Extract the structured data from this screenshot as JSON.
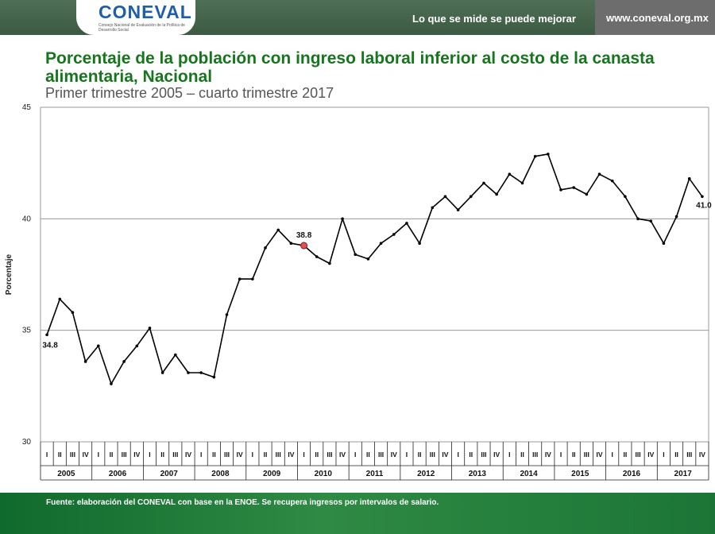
{
  "header": {
    "logo_text": "CONEVAL",
    "logo_subtitle": "Consejo Nacional de Evaluación de la Política de Desarrollo Social",
    "slogan": "Lo que se mide se puede mejorar",
    "url": "www.coneval.org.mx"
  },
  "title": "Porcentaje de la población con ingreso laboral inferior al costo de la canasta alimentaria, Nacional",
  "subtitle": "Primer trimestre 2005 – cuarto trimestre 2017",
  "footer": {
    "source": "Fuente: elaboración del CONEVAL con base en la ENOE. Se recupera ingresos por intervalos de salario."
  },
  "colors": {
    "title_green": "#17751e",
    "line": "#000000",
    "highlight_marker": "#e05050",
    "header_bar": "#46654c",
    "footer_bar": "#1f7a37"
  },
  "chart_data": {
    "type": "line",
    "ylabel": "Porcentaje",
    "ylim": [
      30,
      45
    ],
    "yticks": [
      30,
      35,
      40,
      45
    ],
    "grid": "horizontal",
    "legend": "none",
    "quarter_labels": [
      "I",
      "II",
      "III",
      "IV"
    ],
    "years": [
      "2005",
      "2006",
      "2007",
      "2008",
      "2009",
      "2010",
      "2011",
      "2012",
      "2013",
      "2014",
      "2015",
      "2016",
      "2017"
    ],
    "series": [
      {
        "values": [
          34.8,
          36.4,
          35.8,
          33.6,
          34.3,
          32.6,
          33.6,
          34.3,
          35.1,
          33.1,
          33.9,
          33.1,
          33.1,
          32.9,
          35.7,
          37.3,
          37.3,
          38.7,
          39.5,
          38.9,
          38.8,
          38.3,
          38.0,
          40.0,
          38.4,
          38.2,
          38.9,
          39.3,
          39.8,
          38.9,
          40.5,
          41.0,
          40.4,
          41.0,
          41.6,
          41.1,
          42.0,
          41.6,
          42.8,
          42.9,
          41.3,
          41.4,
          41.1,
          42.0,
          41.7,
          41.0,
          40.0,
          39.9,
          38.9,
          40.1,
          41.8,
          41.0
        ]
      }
    ],
    "annotations": [
      {
        "index": 0,
        "text": "34.8"
      },
      {
        "index": 20,
        "text": "38.8"
      },
      {
        "index": 51,
        "text": "41.0"
      }
    ],
    "highlight_index": 20
  }
}
